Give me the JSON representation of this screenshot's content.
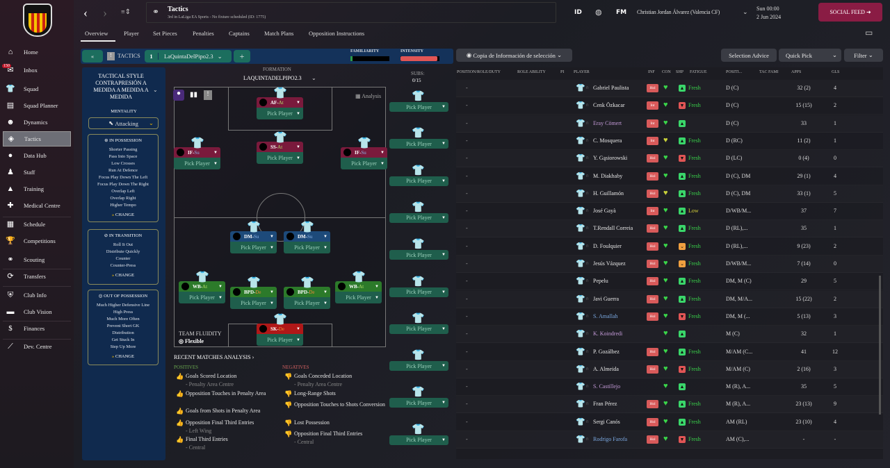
{
  "sidebar": {
    "items": [
      {
        "label": "Home",
        "icon": "⌂"
      },
      {
        "label": "Inbox",
        "icon": "✉"
      },
      {
        "label": "Squad",
        "icon": "👕"
      },
      {
        "label": "Squad Planner",
        "icon": "▤"
      },
      {
        "label": "Dynamics",
        "icon": "☻"
      },
      {
        "label": "Tactics",
        "icon": "◈"
      },
      {
        "label": "Data Hub",
        "icon": "●"
      },
      {
        "label": "Staff",
        "icon": "♟"
      },
      {
        "label": "Training",
        "icon": "▲"
      },
      {
        "label": "Medical Centre",
        "icon": "✚"
      },
      {
        "label": "Schedule",
        "icon": "▦"
      },
      {
        "label": "Competitions",
        "icon": "🏆"
      },
      {
        "label": "Scouting",
        "icon": "⚭"
      },
      {
        "label": "Transfers",
        "icon": "⟳"
      },
      {
        "label": "Club Info",
        "icon": "⛨"
      },
      {
        "label": "Club Vision",
        "icon": "▬"
      },
      {
        "label": "Finances",
        "icon": "$"
      },
      {
        "label": "Dev. Centre",
        "icon": "⟋"
      }
    ],
    "inbox_badge": "150",
    "active": "Tactics"
  },
  "header": {
    "title": "Tactics",
    "subtitle": "3rd in LaLiga EA Sports - No fixture scheduled (ID: 1775)",
    "id_label": "ID",
    "fm_label": "FM",
    "manager": "Christian Jordan Álvarez (Valencia CF)",
    "day_time": "Sun 00:00",
    "date": "2 Jun 2024",
    "social_feed": "SOCIAL FEED"
  },
  "tabs": [
    "Overview",
    "Player",
    "Set Pieces",
    "Penalties",
    "Captains",
    "Match Plans",
    "Opposition Instructions"
  ],
  "tactics_bar": {
    "collapse": "«",
    "label": "TACTICS",
    "slot": "1",
    "tactic_name": "LaQuintaDelPipo2.3",
    "add": "+",
    "familiarity_label": "FAMILIARITY",
    "familiarity": 0.05,
    "intensity_label": "INTENSITY",
    "intensity": 0.95
  },
  "tactical_style": {
    "title": "TACTICAL STYLE CONTRAPRESIÓN A MEDIDA A MEDIDA A MEDIDA",
    "mentality_label": "MENTALITY",
    "mentality": "Attacking",
    "in_possession": {
      "title": "IN POSSESSION",
      "items": [
        "Shorter Passing",
        "Pass Into Space",
        "Low Crosses",
        "Run At Defence",
        "Focus Play Down The Left",
        "Focus Play Down The Right",
        "Overlap Left",
        "Overlap Right",
        "Higher Tempo"
      ]
    },
    "in_transition": {
      "title": "IN TRANSITION",
      "items": [
        "Roll It Out",
        "Distribute Quickly",
        "Counter",
        "Counter-Press"
      ]
    },
    "out_of_possession": {
      "title": "OUT OF POSSESSION",
      "items": [
        "Much Higher Defensive Line",
        "High Press",
        "Much More Often",
        "Prevent Short GK",
        "Distribution",
        "Get Stuck In",
        "Step Up More"
      ]
    },
    "change": "CHANGE"
  },
  "formation": {
    "label": "FORMATION",
    "name": "LAQUINTADELPIPO2.3",
    "subs_label": "SUBS:",
    "subs": "0/15",
    "analysis": "Analysis",
    "fluidity_label": "TEAM FLUIDITY",
    "fluidity": "Flexible",
    "pick": "Pick Player",
    "positions": [
      {
        "role": "AF",
        "duty": "At",
        "type": "att"
      },
      {
        "role": "SS",
        "duty": "At",
        "type": "att"
      },
      {
        "role": "IF",
        "duty": "Su",
        "type": "att"
      },
      {
        "role": "IF",
        "duty": "Su",
        "type": "att"
      },
      {
        "role": "DM",
        "duty": "Su",
        "type": "mid"
      },
      {
        "role": "DM",
        "duty": "Su",
        "type": "mid"
      },
      {
        "role": "WB",
        "duty": "At",
        "type": "def"
      },
      {
        "role": "BPD",
        "duty": "De",
        "type": "def"
      },
      {
        "role": "BPD",
        "duty": "De",
        "type": "def"
      },
      {
        "role": "WB",
        "duty": "At",
        "type": "def"
      },
      {
        "role": "SK",
        "duty": "De",
        "type": "gk"
      }
    ]
  },
  "analysis": {
    "title": "RECENT MATCHES ANALYSIS ›",
    "positives_label": "POSITIVES",
    "negatives_label": "NEGATIVES",
    "positives": [
      {
        "text": "Goals Scored Location",
        "detail": "- Penalty Area Centre"
      },
      {
        "text": "Opposition Touches in Penalty Area",
        "detail": ""
      },
      {
        "text": "Goals from Shots in Penalty Area",
        "detail": ""
      },
      {
        "text": "Opposition Final Third Entries",
        "detail": "- Left Wing"
      },
      {
        "text": "Final Third Entries",
        "detail": "- Central"
      }
    ],
    "negatives": [
      {
        "text": "Goals Conceded Location",
        "detail": "- Penalty Area Centre"
      },
      {
        "text": "Long-Range Shots",
        "detail": ""
      },
      {
        "text": "Opposition Touches to Shots Conversion",
        "detail": ""
      },
      {
        "text": "Lost Possession",
        "detail": ""
      },
      {
        "text": "Opposition Final Third Entries",
        "detail": "- Central"
      }
    ]
  },
  "table": {
    "view": "Copia de Información de selección",
    "selection_advice": "Selection Advice",
    "quick_pick": "Quick Pick",
    "filter": "Filter",
    "columns": [
      "POSITION/ROLE/DUTY",
      "ROLE ABILITY",
      "PI",
      "PLAYER",
      "INF",
      "CON",
      "SHP",
      "FATIGUE",
      "POSITI...",
      "TAC FAMI",
      "APPS",
      "GLS"
    ],
    "rows": [
      [
        "-",
        "Gabriel Paulista",
        "Hol",
        "green",
        "up",
        "Fresh",
        "D (C)",
        "32 (2)",
        "4",
        "white"
      ],
      [
        "-",
        "Cenk Özkacar",
        "Int",
        "green",
        "down",
        "Fresh",
        "D (C)",
        "15 (15)",
        "2",
        "white"
      ],
      [
        "-",
        "Eray Cömert",
        "Int",
        "green",
        "up",
        "",
        "D (C)",
        "33",
        "1",
        "purple"
      ],
      [
        "-",
        "C. Mosquera",
        "Int",
        "yellow",
        "up",
        "Fresh",
        "D (RC)",
        "11 (2)",
        "1",
        "white"
      ],
      [
        "-",
        "Y. Gąsiorowski",
        "Hol",
        "green",
        "down",
        "Fresh",
        "D (LC)",
        "0 (4)",
        "0",
        "white"
      ],
      [
        "-",
        "M. Diakhaby",
        "Hol",
        "green",
        "up",
        "Fresh",
        "D (C), DM",
        "29 (1)",
        "4",
        "white"
      ],
      [
        "-",
        "H. Guillamón",
        "Hol",
        "yellow",
        "up",
        "Fresh",
        "D (C), DM",
        "33 (1)",
        "5",
        "white"
      ],
      [
        "-",
        "José Gayà",
        "Int",
        "green",
        "up",
        "Low",
        "D/WB/M...",
        "37",
        "7",
        "white"
      ],
      [
        "-",
        "T.Rendall Correia",
        "Hol",
        "green",
        "up",
        "Fresh",
        "D (RL),...",
        "35",
        "1",
        "white"
      ],
      [
        "-",
        "D. Foulquier",
        "Hol",
        "green",
        "dip",
        "Fresh",
        "D (RL),...",
        "9 (23)",
        "2",
        "white"
      ],
      [
        "-",
        "Jesús Vázquez",
        "Hol",
        "green",
        "dip",
        "Fresh",
        "D/WB/M...",
        "7 (14)",
        "0",
        "white"
      ],
      [
        "-",
        "Pepelu",
        "Hol",
        "green",
        "up",
        "Fresh",
        "DM, M (C)",
        "29",
        "5",
        "white"
      ],
      [
        "-",
        "Javi Guerra",
        "Hol",
        "green",
        "up",
        "Fresh",
        "DM, M/A...",
        "15 (22)",
        "2",
        "white"
      ],
      [
        "-",
        "S. Amallah",
        "Hol",
        "green",
        "down",
        "Fresh",
        "DM, M (...",
        "5 (13)",
        "3",
        "blue"
      ],
      [
        "-",
        "K. Koindredi",
        "",
        "green",
        "up",
        "",
        "M (C)",
        "32",
        "1",
        "purple"
      ],
      [
        "-",
        "P. Gozálbez",
        "Hol",
        "green",
        "up",
        "Fresh",
        "M/AM (C...",
        "41",
        "12",
        "white"
      ],
      [
        "-",
        "A. Almeida",
        "Hol",
        "green",
        "down",
        "Fresh",
        "M/AM (C)",
        "2 (16)",
        "3",
        "white"
      ],
      [
        "-",
        "S. Castillejo",
        "",
        "green",
        "up",
        "",
        "M (R), A...",
        "35",
        "5",
        "purple"
      ],
      [
        "-",
        "Fran Pérez",
        "Hol",
        "green",
        "up",
        "Fresh",
        "M (R), A...",
        "23 (13)",
        "9",
        "white"
      ],
      [
        "-",
        "Sergi Canós",
        "Hol",
        "green",
        "up",
        "Fresh",
        "AM (RL)",
        "23 (10)",
        "4",
        "white"
      ],
      [
        "-",
        "Rodrigo Farofa",
        "Hol",
        "green",
        "down",
        "Fresh",
        "AM (C),...",
        "-",
        "-",
        "blue"
      ]
    ]
  },
  "colors": {
    "attack_role": "#7a1a3c",
    "mid_role": "#1d4a7a",
    "def_role": "#2c7a2a",
    "gk_role": "#b01818",
    "pick": "#1f5e4c",
    "tactics_bar": "#14325a",
    "social": "#8a1c44",
    "fresh": "#39d14a",
    "low": "#d7d23a"
  }
}
